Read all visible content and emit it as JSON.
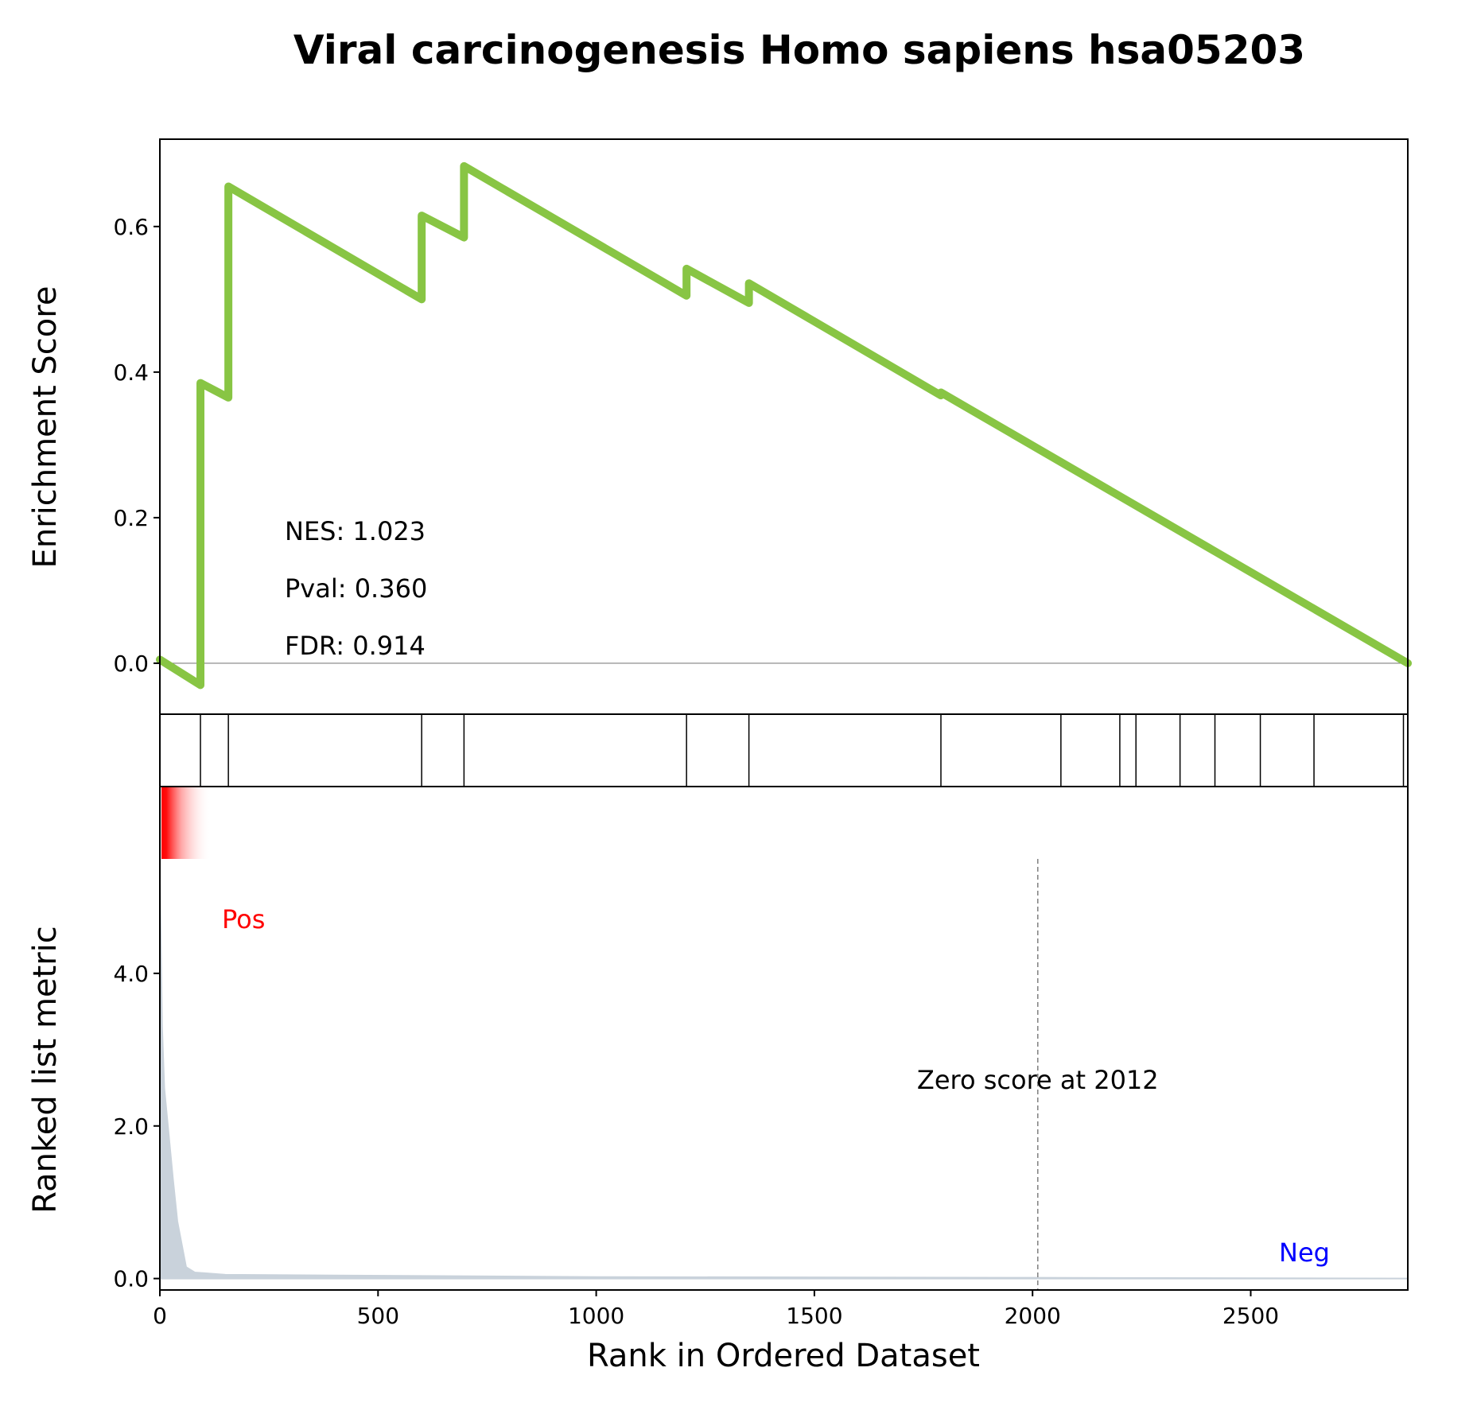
{
  "chart_data": {
    "type": "line",
    "title": "Viral carcinogenesis Homo sapiens hsa05203",
    "xlabel": "Rank in Ordered Dataset",
    "es_ylabel": "Enrichment Score",
    "rank_ylabel": "Ranked list metric",
    "xlim": [
      0,
      2860
    ],
    "es_ylim": [
      -0.07,
      0.72
    ],
    "rank_ylim": [
      -0.15,
      5.5
    ],
    "x_ticks": [
      0,
      500,
      1000,
      1500,
      2000,
      2500
    ],
    "x_tick_labels": [
      "0",
      "500",
      "1000",
      "1500",
      "2000",
      "2500"
    ],
    "es_ticks": [
      0.0,
      0.2,
      0.4,
      0.6
    ],
    "es_tick_labels": [
      "0.0",
      "0.2",
      "0.4",
      "0.6"
    ],
    "rank_ticks": [
      0.0,
      2.0,
      4.0
    ],
    "rank_tick_labels": [
      "0.0",
      "2.0",
      "4.0"
    ],
    "es_curve": {
      "color": "#88c544",
      "x": [
        0,
        93,
        93,
        157,
        157,
        600,
        600,
        697,
        697,
        1207,
        1207,
        1350,
        1350,
        1790,
        1790,
        2860
      ],
      "y": [
        0.005,
        -0.03,
        0.385,
        0.365,
        0.655,
        0.5,
        0.615,
        0.585,
        0.683,
        0.505,
        0.542,
        0.495,
        0.522,
        0.368,
        0.372,
        0.0
      ]
    },
    "hits": [
      93,
      157,
      600,
      697,
      1207,
      1350,
      1790,
      2065,
      2200,
      2237,
      2338,
      2418,
      2522,
      2645,
      2850
    ],
    "ranked_metric": {
      "color": "#c9d2db",
      "x": [
        0,
        5,
        10,
        20,
        30,
        40,
        50,
        60,
        80,
        150,
        400,
        1000,
        2000,
        2860
      ],
      "y": [
        5.2,
        3.3,
        2.5,
        1.9,
        1.3,
        0.75,
        0.45,
        0.15,
        0.08,
        0.05,
        0.04,
        0.02,
        0.01,
        0.0
      ]
    },
    "stats": {
      "nes": "NES: 1.023",
      "pval": "Pval: 0.360",
      "fdr": "FDR: 0.914"
    },
    "zero_score_x": 2012,
    "zero_score_label": "Zero score at 2012",
    "pos_label": "Pos",
    "neg_label": "Neg",
    "pos_color": "#ff0000",
    "neg_color": "#0000ff"
  }
}
